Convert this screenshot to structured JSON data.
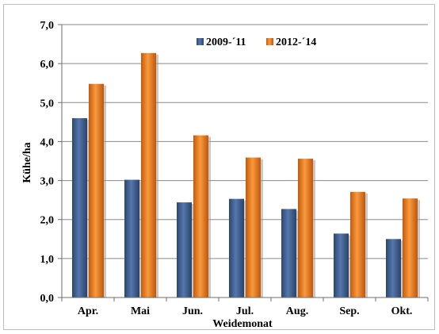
{
  "chart_data": {
    "type": "bar",
    "categories": [
      "Apr.",
      "Mai",
      "Jun.",
      "Jul.",
      "Aug.",
      "Sep.",
      "Okt."
    ],
    "series": [
      {
        "name": "2009-´11",
        "values": [
          4.6,
          3.02,
          2.44,
          2.53,
          2.27,
          1.64,
          1.5
        ],
        "color": "#3f5f8f"
      },
      {
        "name": "2012-´14",
        "values": [
          5.48,
          6.27,
          4.16,
          3.59,
          3.56,
          2.71,
          2.54
        ],
        "color": "#e8761d"
      }
    ],
    "xlabel": "Weidemonat",
    "ylabel": "Kühe/ha",
    "ylim": [
      0,
      7
    ],
    "yticks": [
      "0,0",
      "1,0",
      "2,0",
      "3,0",
      "4,0",
      "5,0",
      "6,0",
      "7,0"
    ],
    "grid": true,
    "legend_position": "top-right"
  }
}
